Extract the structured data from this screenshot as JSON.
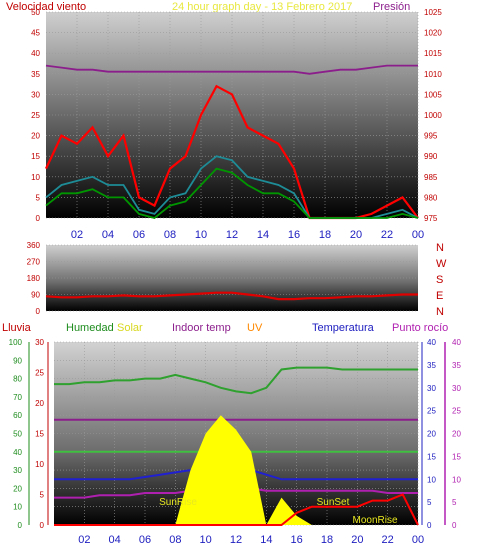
{
  "header": {
    "left_label": "Velocidad viento",
    "center_title": "24 hour graph day - 13 Febrero 2017",
    "right_label": "Presión"
  },
  "colors": {
    "wind_gust": "#ff0000",
    "wind_avg": "#1e8c96",
    "wind_green": "#009600",
    "pressure": "#8c1e8c",
    "direction": "#e00000",
    "humidity": "#2ea12e",
    "solar": "#ffff00",
    "indoor": "#8c1e8c",
    "uv": "#ff8800",
    "temperature": "#2020d0",
    "dewpoint": "#b020b0",
    "rain": "#ff0000",
    "axis_red": "#c00000",
    "axis_blue": "#2020c0"
  },
  "panel3_header": {
    "lluvia": "Lluvia",
    "humedad": "Humedad",
    "solar": "Solar",
    "indoor": "Indoor temp",
    "uv": "UV",
    "temperatura": "Temperatura",
    "rocio": "Punto rocío"
  },
  "chart_data": [
    {
      "type": "line",
      "title": "24 hour graph day - 13 Febrero 2017",
      "x": [
        "00",
        "01",
        "02",
        "03",
        "04",
        "05",
        "06",
        "07",
        "08",
        "09",
        "10",
        "11",
        "12",
        "13",
        "14",
        "15",
        "16",
        "17",
        "18",
        "19",
        "20",
        "21",
        "22",
        "23",
        "00"
      ],
      "x_tick_labels": [
        "02",
        "04",
        "06",
        "08",
        "10",
        "12",
        "14",
        "16",
        "18",
        "20",
        "22",
        "00"
      ],
      "y_left_label": "Velocidad viento",
      "y_left_ticks": [
        0,
        5,
        10,
        15,
        20,
        25,
        30,
        35,
        40,
        45,
        50
      ],
      "y_left_range": [
        0,
        50
      ],
      "y_right_label": "Presión",
      "y_right_ticks": [
        975,
        980,
        985,
        990,
        995,
        1000,
        1005,
        1010,
        1015,
        1020,
        1025
      ],
      "y_right_range": [
        975,
        1025
      ],
      "series": [
        {
          "key": "gust",
          "values": [
            12,
            20,
            18,
            22,
            15,
            20,
            5,
            3,
            12,
            15,
            25,
            32,
            30,
            22,
            20,
            18,
            12,
            0,
            0,
            0,
            0,
            1,
            3,
            5,
            0
          ]
        },
        {
          "key": "avg",
          "values": [
            5,
            8,
            9,
            10,
            8,
            8,
            2,
            1,
            5,
            6,
            12,
            15,
            14,
            10,
            9,
            8,
            6,
            0,
            0,
            0,
            0,
            0,
            1,
            2,
            0
          ]
        },
        {
          "key": "green",
          "values": [
            3,
            6,
            6,
            7,
            5,
            5,
            1,
            0,
            3,
            4,
            8,
            12,
            11,
            8,
            6,
            6,
            4,
            0,
            0,
            0,
            0,
            0,
            0,
            1,
            0
          ]
        },
        {
          "key": "pressure",
          "values": [
            1012,
            1011.5,
            1011,
            1011,
            1010.5,
            1010.5,
            1010.5,
            1010.5,
            1010.5,
            1010.5,
            1010.5,
            1010.5,
            1010.5,
            1010.5,
            1010.5,
            1010.5,
            1010.5,
            1010,
            1010.5,
            1011,
            1011,
            1011.5,
            1012,
            1012,
            1012
          ]
        }
      ]
    },
    {
      "type": "line",
      "title": "",
      "y_left_ticks": [
        0,
        90,
        180,
        270,
        360
      ],
      "y_left_range": [
        0,
        360
      ],
      "y_right_labels": [
        "N",
        "W",
        "S",
        "E",
        "N"
      ],
      "series": [
        {
          "key": "direction",
          "values": [
            80,
            75,
            75,
            80,
            80,
            85,
            80,
            80,
            85,
            90,
            95,
            100,
            100,
            90,
            80,
            65,
            65,
            70,
            70,
            75,
            80,
            80,
            85,
            90,
            90
          ]
        }
      ]
    },
    {
      "type": "line",
      "title": "",
      "x_tick_labels": [
        "02",
        "04",
        "06",
        "08",
        "10",
        "12",
        "14",
        "16",
        "18",
        "20",
        "22",
        "00"
      ],
      "y_axis_1_ticks": [
        0,
        10,
        20,
        30,
        40,
        50,
        60,
        70,
        80,
        90,
        100
      ],
      "y_axis_2_ticks": [
        0,
        5,
        10,
        15,
        20,
        25,
        30
      ],
      "y_axis_3_ticks": [
        0,
        5,
        10,
        15,
        20,
        25,
        30,
        35,
        40
      ],
      "y_axis_4_ticks": [
        0,
        5,
        10,
        15,
        20,
        25,
        30,
        35,
        40
      ],
      "annotations": [
        "SunRise",
        "SunSet",
        "MoonRise"
      ],
      "series": [
        {
          "key": "humidity",
          "values": [
            77,
            77,
            78,
            78,
            79,
            79,
            80,
            80,
            82,
            80,
            78,
            75,
            73,
            72,
            75,
            85,
            86,
            86,
            86,
            85,
            85,
            85,
            85,
            85,
            85
          ]
        },
        {
          "key": "indoor",
          "values": [
            23,
            23,
            23,
            23,
            23,
            23,
            23,
            23,
            23,
            23,
            23,
            23,
            23,
            23,
            23,
            23,
            23,
            23,
            23,
            23,
            23,
            23,
            23,
            23,
            23
          ]
        },
        {
          "key": "lightgreen",
          "values": [
            16,
            16,
            16,
            16,
            16,
            16,
            16,
            16,
            16,
            16,
            16,
            16,
            16,
            16,
            16,
            16,
            16,
            16,
            16,
            16,
            16,
            16,
            16,
            16,
            16
          ]
        },
        {
          "key": "temperature",
          "values": [
            10,
            10,
            10,
            10,
            10,
            10,
            10.5,
            11,
            11.5,
            12,
            13,
            13.5,
            13,
            12,
            11,
            10,
            10,
            10,
            10,
            10,
            10,
            10,
            10,
            10,
            10
          ]
        },
        {
          "key": "dewpoint",
          "values": [
            6,
            6,
            6,
            6.5,
            6.5,
            6.5,
            7,
            7,
            7,
            7.5,
            8,
            8,
            8,
            8,
            7.5,
            7.5,
            7.5,
            7.5,
            7.5,
            7.5,
            7.5,
            7.5,
            7,
            7,
            7
          ]
        },
        {
          "key": "solar",
          "values": [
            0,
            0,
            0,
            0,
            0,
            0,
            0,
            0,
            0,
            300,
            500,
            600,
            520,
            400,
            0,
            150,
            50,
            0,
            0,
            0,
            0,
            0,
            0,
            0,
            0
          ]
        },
        {
          "key": "rain",
          "values": [
            0,
            0,
            0,
            0,
            0,
            0,
            0,
            0,
            0,
            0,
            0,
            0,
            0,
            0,
            0,
            0,
            2,
            3,
            3,
            3,
            3,
            4,
            4,
            5,
            0
          ]
        }
      ]
    }
  ]
}
